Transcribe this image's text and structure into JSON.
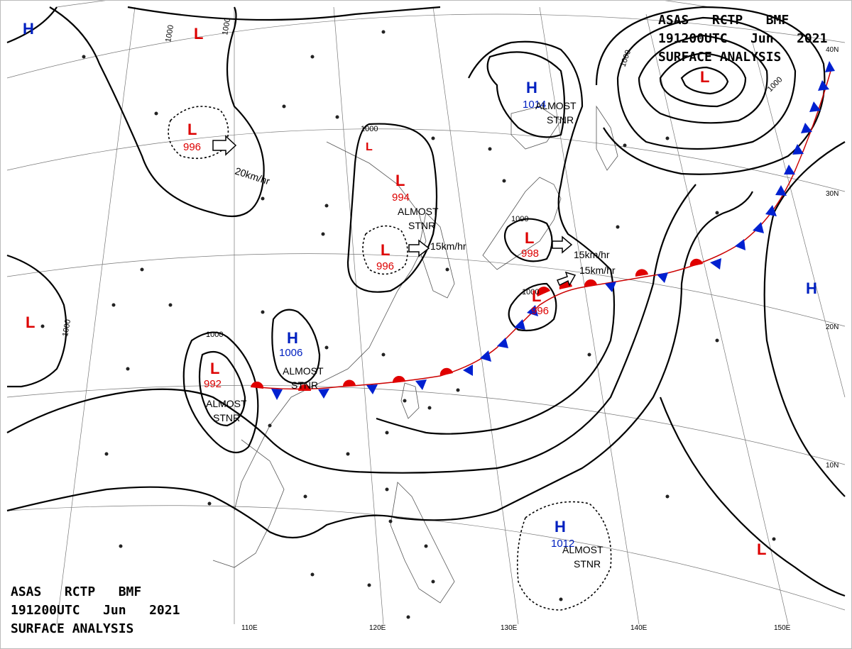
{
  "header_top": {
    "line1": "ASAS   RCTP   BMF",
    "line2": "191200UTC   Jun   2021",
    "line3": "SURFACE ANALYSIS"
  },
  "header_bottom": {
    "line1": "ASAS   RCTP   BMF",
    "line2": "191200UTC   Jun   2021",
    "line3": "SURFACE ANALYSIS"
  },
  "lon_labels": [
    "110E",
    "120E",
    "130E",
    "140E",
    "150E"
  ],
  "lat_labels": [
    "40N",
    "30N",
    "20N",
    "10N"
  ],
  "isobar_label": "1000",
  "pressure_systems": [
    {
      "type": "H",
      "value": ""
    },
    {
      "type": "L",
      "value": ""
    },
    {
      "type": "L",
      "value": "996"
    },
    {
      "type": "L",
      "value": "994"
    },
    {
      "type": "L",
      "value": "996"
    },
    {
      "type": "L",
      "value": "998"
    },
    {
      "type": "L",
      "value": "996"
    },
    {
      "type": "H",
      "value": "1014"
    },
    {
      "type": "L",
      "value": ""
    },
    {
      "type": "H",
      "value": ""
    },
    {
      "type": "L",
      "value": ""
    },
    {
      "type": "H",
      "value": "1006"
    },
    {
      "type": "L",
      "value": "992"
    },
    {
      "type": "H",
      "value": "1012"
    },
    {
      "type": "L",
      "value": ""
    },
    {
      "type": "L",
      "value": ""
    }
  ],
  "annotations": {
    "almost_stnr": "ALMOST",
    "stnr": "STNR",
    "speed_20": "20km/hr",
    "speed_15": "15km/hr"
  },
  "colors": {
    "low": "#d00000",
    "high": "#0020c0",
    "warm_front": "#e00000",
    "cold_front": "#0020d0",
    "isobar": "#000000"
  }
}
